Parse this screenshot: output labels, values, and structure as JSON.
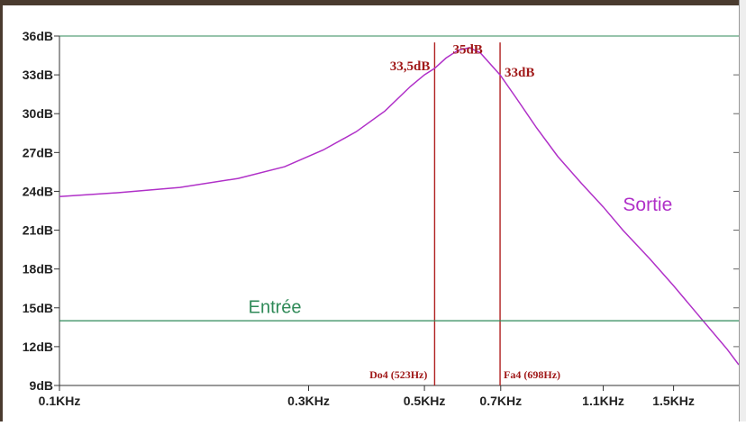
{
  "chart_data": {
    "type": "line",
    "x_scale": "log",
    "xlim": [
      0.1,
      2.0
    ],
    "ylim": [
      9,
      36
    ],
    "y_ticks": [
      {
        "value": 36,
        "label": "36dB"
      },
      {
        "value": 33,
        "label": "33dB"
      },
      {
        "value": 30,
        "label": "30dB"
      },
      {
        "value": 27,
        "label": "27dB"
      },
      {
        "value": 24,
        "label": "24dB"
      },
      {
        "value": 21,
        "label": "21dB"
      },
      {
        "value": 18,
        "label": "18dB"
      },
      {
        "value": 15,
        "label": "15dB"
      },
      {
        "value": 12,
        "label": "12dB"
      },
      {
        "value": 9,
        "label": "9dB"
      }
    ],
    "x_ticks": [
      {
        "value": 0.1,
        "label": "0.1KHz"
      },
      {
        "value": 0.3,
        "label": "0.3KHz"
      },
      {
        "value": 0.5,
        "label": "0.5KHz"
      },
      {
        "value": 0.7,
        "label": "0.7KHz"
      },
      {
        "value": 1.1,
        "label": "1.1KHz"
      },
      {
        "value": 1.5,
        "label": "1.5KHz"
      }
    ],
    "series": [
      {
        "name": "Sortie",
        "color": "#b030c8",
        "x": [
          0.1,
          0.13,
          0.17,
          0.22,
          0.27,
          0.32,
          0.37,
          0.42,
          0.47,
          0.5,
          0.523,
          0.55,
          0.58,
          0.61,
          0.64,
          0.67,
          0.698,
          0.75,
          0.82,
          0.9,
          1.0,
          1.1,
          1.2,
          1.35,
          1.5,
          1.7,
          1.9,
          2.0
        ],
        "values": [
          23.6,
          23.9,
          24.3,
          25.0,
          25.9,
          27.2,
          28.6,
          30.2,
          32.1,
          33.0,
          33.5,
          34.3,
          34.9,
          35.1,
          34.7,
          33.8,
          33.0,
          31.2,
          28.9,
          26.7,
          24.6,
          22.8,
          21.0,
          18.8,
          16.7,
          14.1,
          11.8,
          10.6
        ]
      },
      {
        "name": "Entrée",
        "color": "#2f8a58",
        "x": [
          0.1,
          2.0
        ],
        "values": [
          14,
          14
        ]
      }
    ],
    "reference_lines": [
      {
        "x": 0.523,
        "label": "Do4 (523Hz)",
        "color": "#b02020"
      },
      {
        "x": 0.698,
        "label": "Fa4 (698Hz)",
        "color": "#b02020"
      }
    ],
    "annotations": [
      {
        "text": "33,5dB",
        "x": 0.523,
        "y": 33.5
      },
      {
        "text": "35dB",
        "x": 0.61,
        "y": 35
      },
      {
        "text": "33dB",
        "x": 0.698,
        "y": 33
      }
    ],
    "series_labels": [
      {
        "text": "Sortie",
        "x": 1.2,
        "y": 22.5
      },
      {
        "text": "Entrée",
        "x": 0.23,
        "y": 14.6
      }
    ],
    "top_gridline": {
      "y": 36,
      "color": "#2f8a58"
    },
    "grid": false
  }
}
